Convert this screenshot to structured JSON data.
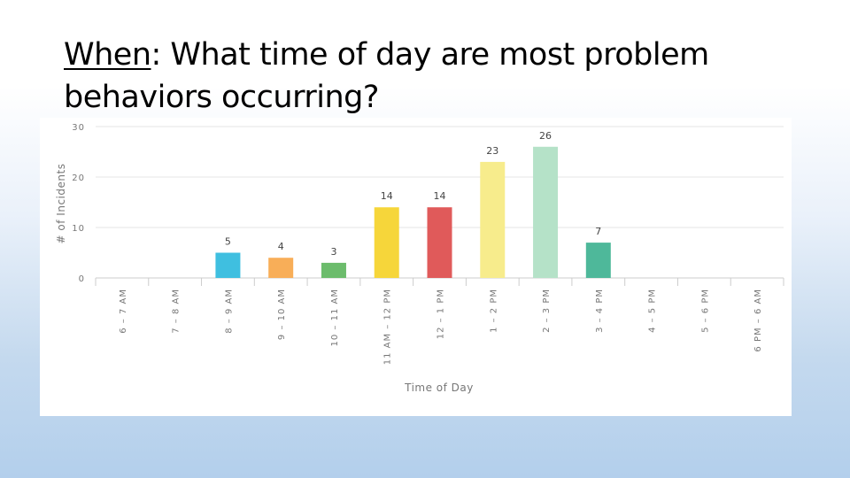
{
  "slide": {
    "title_keyword": "When",
    "title_rest": ":  What time of day are most problem behaviors occurring?"
  },
  "chart_data": {
    "type": "bar",
    "title": "",
    "xlabel": "Time of Day",
    "ylabel": "# of Incidents",
    "ylim": [
      0,
      30
    ],
    "yticks": [
      0,
      10,
      20,
      30
    ],
    "grid": true,
    "legend": "none",
    "data_labels": true,
    "categories": [
      "6 – 7 AM",
      "7 – 8 AM",
      "8 – 9 AM",
      "9 – 10 AM",
      "10 – 11 AM",
      "11 AM – 12 PM",
      "12 – 1 PM",
      "1 – 2 PM",
      "2 – 3 PM",
      "3 – 4 PM",
      "4 – 5 PM",
      "5 – 6 PM",
      "6 PM – 6 AM"
    ],
    "values": [
      0,
      0,
      5,
      4,
      3,
      14,
      14,
      23,
      26,
      7,
      0,
      0,
      0
    ],
    "colors": [
      "#3fbfe0",
      "#3fbfe0",
      "#3fbfe0",
      "#f8ae58",
      "#6cbc6c",
      "#f6d63a",
      "#e05a5a",
      "#f7ec8c",
      "#b5e2c8",
      "#4eb89a",
      "#4eb89a",
      "#4eb89a",
      "#4eb89a"
    ]
  }
}
